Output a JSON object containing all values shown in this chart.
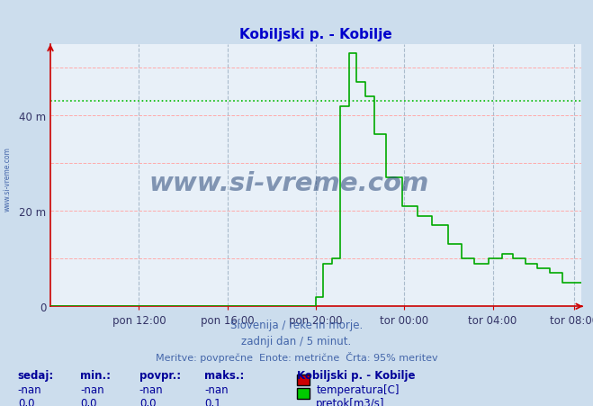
{
  "title": "Kobiljski p. - Kobilje",
  "title_color": "#0000cc",
  "bg_color": "#ccdded",
  "plot_bg_color": "#e8f0f8",
  "xlabel_ticks": [
    "pon 12:00",
    "pon 16:00",
    "pon 20:00",
    "tor 00:00",
    "tor 04:00",
    "tor 08:00"
  ],
  "ylabel_ticks": [
    0,
    20,
    40
  ],
  "ylabel_labels": [
    "0",
    "20 m",
    "40 m"
  ],
  "ylim": [
    0,
    55
  ],
  "xlim": [
    0,
    288
  ],
  "grid_h_color": "#ffaaaa",
  "grid_v_color": "#aabbcc",
  "threshold_line_y": 43.0,
  "threshold_color": "#00bb00",
  "line_color": "#00aa00",
  "footer_line1": "Slovenija / reke in morje.",
  "footer_line2": "zadnji dan / 5 minut.",
  "footer_line3": "Meritve: povprečne  Enote: metrične  Črta: 95% meritev",
  "footer_color": "#4466aa",
  "legend_title": "Kobiljski p. - Kobilje",
  "legend_color": "#000099",
  "table_headers": [
    "sedaj:",
    "min.:",
    "povpr.:",
    "maks.:"
  ],
  "table_row1": [
    "-nan",
    "-nan",
    "-nan",
    "-nan"
  ],
  "table_row2": [
    "0,0",
    "0,0",
    "0,0",
    "0,1"
  ],
  "table_color": "#000099",
  "temp_color": "#cc0000",
  "pretok_color": "#00cc00",
  "watermark_text": "www.si-vreme.com",
  "watermark_color": "#1a3a6e",
  "x_tick_positions": [
    48,
    96,
    144,
    192,
    240,
    284
  ],
  "v_grid_positions": [
    48,
    96,
    144,
    192,
    240,
    284
  ],
  "h_grid_positions": [
    10,
    20,
    30,
    40,
    50
  ],
  "pretok_x": [
    0,
    143,
    144,
    147,
    148,
    152,
    153,
    156,
    157,
    161,
    162,
    165,
    166,
    170,
    171,
    175,
    176,
    181,
    182,
    190,
    191,
    198,
    199,
    206,
    207,
    215,
    216,
    222,
    223,
    229,
    230,
    237,
    238,
    244,
    245,
    250,
    251,
    257,
    258,
    263,
    264,
    270,
    271,
    277,
    278,
    288
  ],
  "pretok_y": [
    0,
    0,
    2,
    2,
    9,
    9,
    10,
    10,
    42,
    42,
    53,
    53,
    47,
    47,
    44,
    44,
    36,
    36,
    27,
    27,
    21,
    21,
    19,
    19,
    17,
    17,
    13,
    13,
    10,
    10,
    9,
    9,
    10,
    10,
    11,
    11,
    10,
    10,
    9,
    9,
    8,
    8,
    7,
    7,
    5,
    5
  ]
}
